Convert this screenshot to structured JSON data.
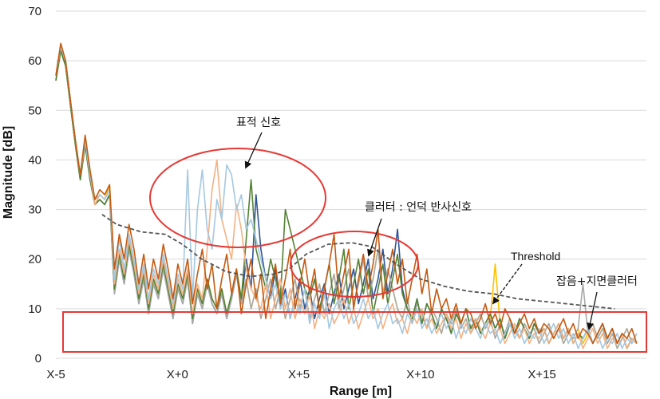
{
  "chart_data": {
    "type": "line",
    "xlabel": "Range  [m]",
    "ylabel": "Magnitude [dB]",
    "ylim": [
      0,
      70
    ],
    "yticks": [
      "0",
      "10",
      "20",
      "30",
      "40",
      "50",
      "60",
      "70"
    ],
    "xticks": [
      {
        "label": "X-5",
        "x": -5
      },
      {
        "label": "X+0",
        "x": 0
      },
      {
        "label": "X+5",
        "x": 5
      },
      {
        "label": "X+10",
        "x": 10
      },
      {
        "label": "X+15",
        "x": 15
      }
    ],
    "xlim": [
      -5,
      19.3
    ],
    "grid": "horizontal",
    "threshold": {
      "label": "Threshold",
      "style": "dashed",
      "color": "#555555",
      "points": [
        [
          -3.1,
          29
        ],
        [
          -2.5,
          27
        ],
        [
          -1.5,
          25.5
        ],
        [
          -0.5,
          25
        ],
        [
          0.2,
          23
        ],
        [
          1.0,
          20
        ],
        [
          2.0,
          17.5
        ],
        [
          3.0,
          16.5
        ],
        [
          4.0,
          17
        ],
        [
          4.6,
          18
        ],
        [
          5.3,
          21
        ],
        [
          6.2,
          23
        ],
        [
          7.2,
          23.3
        ],
        [
          8.0,
          22.5
        ],
        [
          9.0,
          19
        ],
        [
          10.0,
          16
        ],
        [
          11.0,
          14.5
        ],
        [
          12.0,
          13.5
        ],
        [
          13.0,
          13
        ],
        [
          14.0,
          12
        ],
        [
          15.0,
          11.5
        ],
        [
          16.0,
          11
        ],
        [
          17.0,
          10.5
        ],
        [
          18.0,
          10
        ]
      ]
    },
    "series": [
      {
        "color": "#c55a11",
        "role": "main",
        "values": [
          57,
          63.5,
          60,
          52,
          44,
          37,
          45,
          38,
          32,
          34,
          33,
          35,
          18,
          25,
          20,
          27,
          22,
          15,
          21,
          14,
          20,
          16,
          23,
          18,
          12,
          19,
          15,
          20,
          11,
          17,
          22,
          14,
          19,
          10,
          16,
          21,
          13,
          18,
          9,
          15,
          20,
          12,
          17,
          8,
          14,
          19,
          11,
          16,
          22,
          10,
          15,
          20,
          13,
          18,
          9,
          14,
          19,
          25,
          12,
          17,
          22,
          10,
          16,
          21,
          14,
          19,
          26,
          12,
          17,
          22,
          15,
          20,
          11,
          16,
          21,
          13,
          18,
          9,
          14,
          10,
          12,
          8,
          11,
          7,
          10,
          9,
          6,
          8,
          11,
          7,
          9,
          6,
          10,
          8,
          5,
          7,
          9,
          6,
          8,
          5,
          7,
          6,
          4,
          6,
          8,
          5,
          7,
          4,
          6,
          5,
          3,
          5,
          7,
          4,
          6,
          3,
          5,
          4,
          6,
          3
        ]
      },
      {
        "color": "#a5c8e1",
        "role": "target",
        "values": [
          57,
          63,
          60,
          52,
          44,
          37,
          44,
          37,
          32,
          33,
          32,
          34,
          16,
          24,
          18,
          25,
          20,
          14,
          19,
          12,
          18,
          15,
          21,
          16,
          11,
          17,
          14,
          38,
          12,
          30,
          38,
          26,
          22,
          32,
          28,
          39,
          37,
          30,
          33,
          26,
          28,
          24,
          20,
          16,
          12,
          15,
          10,
          13,
          8,
          12,
          9,
          14,
          7,
          11,
          8,
          13,
          6,
          10,
          12,
          8,
          11,
          7,
          9,
          12,
          8,
          10,
          6,
          9,
          11,
          7,
          8,
          5,
          9,
          7,
          10,
          6,
          8,
          5,
          7,
          9,
          6,
          8,
          4,
          7,
          5,
          8,
          6,
          4,
          7,
          5,
          6,
          3,
          5,
          7,
          4,
          6,
          3,
          5,
          4,
          6,
          3,
          5,
          7,
          4,
          6,
          3,
          5,
          2,
          4,
          6,
          3,
          5,
          2,
          4,
          3,
          5,
          2,
          4,
          3,
          5
        ]
      },
      {
        "color": "#f4b183",
        "role": "target",
        "values": [
          57,
          63,
          60,
          52,
          44,
          37,
          44,
          37,
          31,
          33,
          32,
          34,
          15,
          22,
          17,
          24,
          19,
          13,
          18,
          11,
          17,
          14,
          20,
          15,
          10,
          16,
          13,
          18,
          9,
          15,
          12,
          22,
          34,
          40,
          28,
          24,
          20,
          31,
          26,
          18,
          14,
          12,
          10,
          15,
          8,
          12,
          16,
          10,
          14,
          8,
          12,
          9,
          13,
          6,
          10,
          8,
          11,
          7,
          9,
          12,
          7,
          10,
          6,
          9,
          12,
          8,
          10,
          6,
          9,
          11,
          7,
          8,
          5,
          9,
          7,
          10,
          6,
          8,
          5,
          7,
          9,
          6,
          8,
          4,
          7,
          5,
          8,
          6,
          4,
          7,
          5,
          6,
          3,
          5,
          7,
          4,
          6,
          3,
          5,
          4,
          6,
          3,
          5,
          7,
          4,
          6,
          3,
          5,
          2,
          4,
          6,
          3,
          5,
          2,
          4,
          3,
          5,
          2,
          4,
          3
        ]
      },
      {
        "color": "#548235",
        "role": "target",
        "values": [
          56,
          62,
          59,
          51,
          43,
          36,
          43,
          36,
          31,
          32,
          31,
          33,
          14,
          21,
          16,
          23,
          18,
          12,
          17,
          10,
          16,
          13,
          19,
          14,
          9,
          15,
          12,
          17,
          8,
          14,
          11,
          16,
          12,
          10,
          14,
          9,
          13,
          18,
          12,
          24,
          36,
          22,
          18,
          14,
          20,
          16,
          12,
          30,
          26,
          22,
          18,
          14,
          12,
          16,
          10,
          14,
          19,
          11,
          16,
          22,
          10,
          15,
          20,
          13,
          18,
          9,
          14,
          19,
          11,
          16,
          21,
          13,
          10,
          8,
          12,
          7,
          11,
          9,
          6,
          10,
          8,
          5,
          9,
          7,
          10,
          6,
          8,
          5,
          7,
          9,
          6,
          8,
          4,
          7,
          5,
          8,
          6,
          4,
          7,
          5,
          6,
          3,
          5,
          7,
          4,
          6,
          3,
          5,
          4,
          6,
          3,
          5,
          7,
          4,
          6,
          3,
          5,
          2,
          4,
          3
        ]
      },
      {
        "color": "#2f5597",
        "role": "noise",
        "values": [
          56,
          62,
          59,
          51,
          43,
          36,
          43,
          36,
          31,
          32,
          31,
          33,
          13,
          20,
          15,
          22,
          17,
          11,
          16,
          9,
          15,
          12,
          18,
          13,
          8,
          14,
          11,
          16,
          7,
          13,
          10,
          15,
          11,
          9,
          13,
          8,
          12,
          17,
          11,
          20,
          14,
          33,
          22,
          16,
          12,
          18,
          10,
          14,
          8,
          12,
          16,
          10,
          14,
          8,
          12,
          15,
          9,
          13,
          17,
          10,
          14,
          18,
          11,
          15,
          20,
          12,
          16,
          22,
          13,
          18,
          26,
          14,
          10,
          8,
          12,
          7,
          11,
          9,
          6,
          10,
          8,
          5,
          9,
          7,
          10,
          6,
          8,
          5,
          7,
          9,
          6,
          8,
          4,
          7,
          5,
          8,
          6,
          4,
          7,
          5,
          6,
          3,
          5,
          7,
          4,
          6,
          3,
          5,
          4,
          6,
          3,
          5,
          7,
          4,
          6,
          3,
          5,
          2,
          4,
          3
        ]
      },
      {
        "color": "#ffc000",
        "role": "noise",
        "values": [
          56,
          62,
          59,
          51,
          43,
          36,
          43,
          36,
          31,
          33,
          32,
          35,
          14,
          21,
          16,
          23,
          18,
          12,
          17,
          10,
          16,
          13,
          19,
          14,
          9,
          15,
          12,
          17,
          8,
          14,
          11,
          16,
          12,
          10,
          14,
          9,
          13,
          18,
          12,
          16,
          10,
          14,
          8,
          12,
          16,
          10,
          14,
          8,
          12,
          16,
          10,
          14,
          8,
          12,
          15,
          9,
          13,
          17,
          10,
          14,
          18,
          11,
          15,
          20,
          12,
          16,
          22,
          13,
          18,
          14,
          10,
          8,
          12,
          7,
          11,
          9,
          6,
          10,
          8,
          5,
          9,
          7,
          10,
          6,
          8,
          5,
          7,
          9,
          6,
          8,
          19,
          7,
          5,
          8,
          6,
          4,
          7,
          5,
          6,
          3,
          5,
          7,
          4,
          6,
          3,
          5,
          4,
          6,
          3,
          5,
          7,
          4,
          6,
          3,
          5,
          2,
          4,
          6,
          3,
          5
        ]
      },
      {
        "color": "#a9a9a9",
        "role": "noise",
        "values": [
          56,
          62,
          59,
          51,
          43,
          36,
          43,
          36,
          31,
          32,
          31,
          33,
          13,
          20,
          15,
          22,
          17,
          11,
          16,
          9,
          15,
          12,
          18,
          13,
          8,
          14,
          11,
          16,
          7,
          13,
          10,
          15,
          11,
          9,
          13,
          8,
          12,
          17,
          11,
          16,
          10,
          14,
          8,
          12,
          16,
          10,
          14,
          8,
          12,
          16,
          10,
          14,
          8,
          12,
          15,
          9,
          13,
          17,
          10,
          14,
          18,
          11,
          15,
          20,
          12,
          16,
          22,
          13,
          18,
          14,
          10,
          8,
          12,
          7,
          11,
          9,
          6,
          10,
          8,
          5,
          9,
          7,
          10,
          6,
          8,
          5,
          7,
          9,
          6,
          8,
          4,
          7,
          5,
          8,
          6,
          4,
          7,
          5,
          6,
          3,
          5,
          7,
          4,
          6,
          3,
          5,
          4,
          6,
          15,
          5,
          7,
          4,
          6,
          3,
          5,
          2,
          4,
          6,
          3,
          5
        ]
      }
    ],
    "annotations": [
      {
        "text": "표적 신호",
        "target": "ellipse-target"
      },
      {
        "text": "클러터 : 언덕 반사신호",
        "target": "ellipse-clutter"
      },
      {
        "text": "Threshold",
        "target": "threshold-line"
      },
      {
        "text": "잡음+지면클러터",
        "target": "noise-box"
      }
    ],
    "highlight_color": "#e53935"
  }
}
